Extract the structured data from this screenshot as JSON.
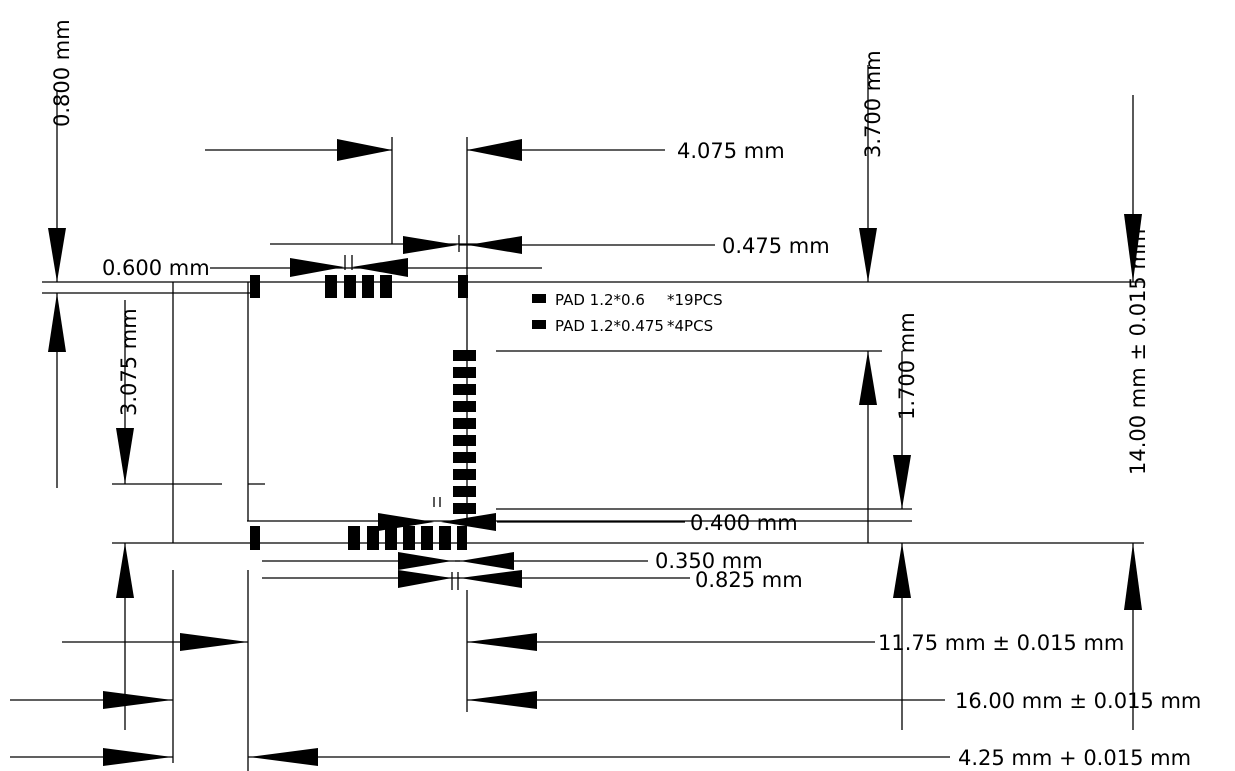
{
  "dimensions": {
    "d0800": "0.800 mm",
    "d3700": "3.700 mm",
    "d4075": "4.075 mm",
    "d0475": "0.475 mm",
    "d0600": "0.600 mm",
    "d3075": "3.075 mm",
    "d1700": "1.700 mm",
    "d0400": "0.400 mm",
    "d0350": "0.350 mm",
    "d0825": "0.825 mm",
    "d1400": "14.00 mm",
    "d1175": "11.75 mm",
    "d1600": "16.00 mm",
    "d0425": "4.25 mm",
    "tol": "0.015 mm"
  },
  "legend": [
    {
      "label": "PAD 1.2*0.6",
      "count": "*19PCS"
    },
    {
      "label": "PAD 1.2*0.475",
      "count": "*4PCS"
    }
  ]
}
